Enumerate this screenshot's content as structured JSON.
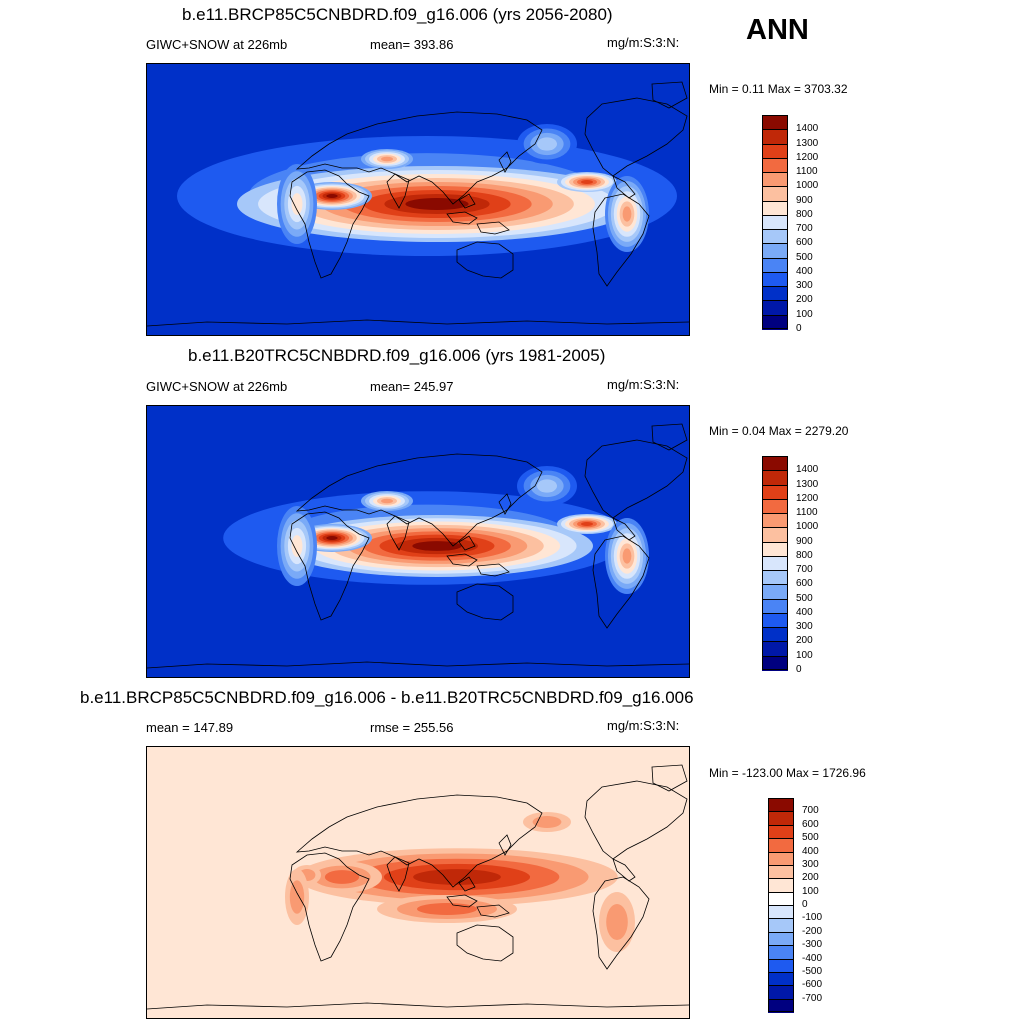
{
  "season": "ANN",
  "colors": {
    "abs": [
      "#000080",
      "#0018a8",
      "#0030c8",
      "#1e5af0",
      "#4a84f5",
      "#7aaaf7",
      "#a6c8f9",
      "#d8e6fc",
      "#ffe6d5",
      "#fcc0a0",
      "#f99a72",
      "#f26a40",
      "#e04018",
      "#c02808",
      "#8a0a00"
    ],
    "diff": [
      "#000080",
      "#0018a8",
      "#0030c8",
      "#1e5af0",
      "#4a84f5",
      "#7aaaf7",
      "#a6c8f9",
      "#d8e6fc",
      "#ffffff",
      "#ffe6d5",
      "#fcc0a0",
      "#f99a72",
      "#f26a40",
      "#e04018",
      "#c02808",
      "#8a0a00"
    ],
    "ocean_abs": "#0030c8",
    "ocean_diff": "#ffe6d5"
  },
  "panels": [
    {
      "title": "b.e11.BRCP85C5CNBDRD.f09_g16.006 (yrs 2056-2080)",
      "left_label": "GIWC+SNOW at 226mb",
      "mid_label": "mean= 393.86",
      "units": "mg/m:S:3:N:",
      "minmax": "Min =   0.11 Max = 3703.32",
      "scale": "abs",
      "levels": [
        "1400",
        "1300",
        "1200",
        "1100",
        "1000",
        "900",
        "800",
        "700",
        "600",
        "500",
        "400",
        "300",
        "200",
        "100",
        "0"
      ]
    },
    {
      "title": "b.e11.B20TRC5CNBDRD.f09_g16.006 (yrs 1981-2005)",
      "left_label": "GIWC+SNOW at 226mb",
      "mid_label": "mean= 245.97",
      "units": "mg/m:S:3:N:",
      "minmax": "Min =   0.04 Max = 2279.20",
      "scale": "abs",
      "levels": [
        "1400",
        "1300",
        "1200",
        "1100",
        "1000",
        "900",
        "800",
        "700",
        "600",
        "500",
        "400",
        "300",
        "200",
        "100",
        "0"
      ]
    },
    {
      "title": "b.e11.BRCP85C5CNBDRD.f09_g16.006 - b.e11.B20TRC5CNBDRD.f09_g16.006",
      "left_label": "mean = 147.89",
      "mid_label": "rmse = 255.56",
      "units": "mg/m:S:3:N:",
      "minmax": "Min = -123.00 Max = 1726.96",
      "scale": "diff",
      "levels": [
        "700",
        "600",
        "500",
        "400",
        "300",
        "200",
        "100",
        "0",
        "-100",
        "-200",
        "-300",
        "-400",
        "-500",
        "-600",
        "-700"
      ]
    }
  ]
}
